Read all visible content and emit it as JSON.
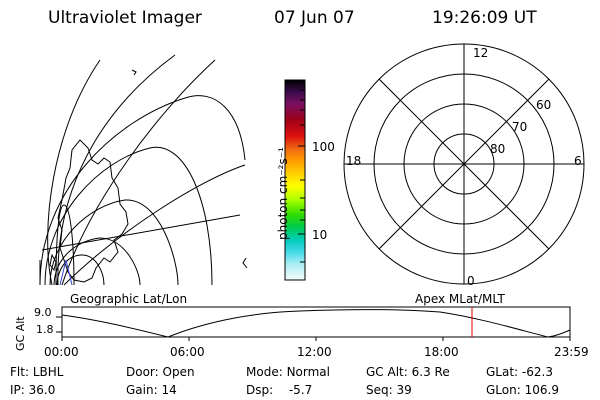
{
  "header": {
    "title": "Ultraviolet Imager",
    "date": "07 Jun 07",
    "time": "19:26:09 UT"
  },
  "colorbar": {
    "unit_label": "photon cm⁻²s⁻¹",
    "tick_100": "100",
    "tick_10": "10",
    "colors": [
      "#000000",
      "#3a0a4a",
      "#7a1060",
      "#a00018",
      "#cc0010",
      "#e02020",
      "#f06010",
      "#ff9900",
      "#ffcc00",
      "#ffff00",
      "#c8ff00",
      "#66ee00",
      "#00dd22",
      "#00ccaa",
      "#00ccdd",
      "#66ddee",
      "#aaeef2",
      "#d8f4f6",
      "#ffffff"
    ]
  },
  "polar": {
    "labels": {
      "top": "12",
      "bottom": "0",
      "left": "18",
      "right": "6"
    },
    "lat_labels": [
      "60",
      "70",
      "80"
    ]
  },
  "timeline": {
    "left_label": "Geographic Lat/Lon",
    "right_label": "Apex MLat/MLT",
    "axis_label": "GC Alt",
    "y_top": "9.0",
    "y_bottom": "1.8",
    "x_ticks": [
      "00:00",
      "06:00",
      "12:00",
      "18:00",
      "23:59"
    ],
    "current_marker_color": "#dd0000"
  },
  "info": {
    "flt_label": "Flt:",
    "flt_value": "LBHL",
    "ip_label": "IP:",
    "ip_value": "36.0",
    "door_label": "Door:",
    "door_value": "Open",
    "gain_label": "Gain:",
    "gain_value": "14",
    "mode_label": "Mode:",
    "mode_value": "Normal",
    "dsp_label": "Dsp:",
    "dsp_value": "-5.7",
    "gcalt_label": "GC Alt:",
    "gcalt_value": "6.3 Re",
    "seq_label": "Seq:",
    "seq_value": "39",
    "glat_label": "GLat:",
    "glat_value": "-62.3",
    "glon_label": "GLon:",
    "glon_value": "106.9"
  }
}
